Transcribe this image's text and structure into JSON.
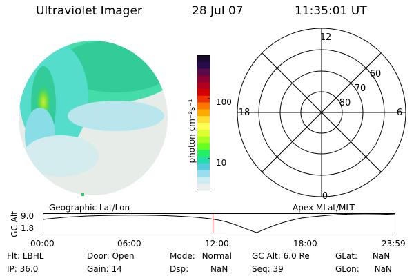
{
  "header": {
    "title": "Ultraviolet Imager",
    "date": "28 Jul 07",
    "time": "11:35:01 UT"
  },
  "colorbar": {
    "unit_label": "photon cm⁻²s⁻¹",
    "tick_labels": [
      "100",
      "10"
    ],
    "colors": [
      "#1a0a2e",
      "#2a0b4a",
      "#5a0a4a",
      "#8a0033",
      "#b00022",
      "#d40000",
      "#ee3300",
      "#ff7700",
      "#ffaa00",
      "#ffdd33",
      "#ffff55",
      "#dfff33",
      "#aaff22",
      "#66ff22",
      "#22ee66",
      "#22ddaa",
      "#55ccdd",
      "#99ddee",
      "#ccecf2",
      "#e8eeea"
    ]
  },
  "polar_plot": {
    "mlt_labels": [
      "12",
      "18",
      "6",
      "0"
    ],
    "mlat_labels": [
      "60",
      "70",
      "80"
    ]
  },
  "gc_panel": {
    "left_label": "Geographic Lat/Lon",
    "right_label": "Apex MLat/MLT",
    "axis_label": "GC Alt",
    "y_ticks": [
      "9.0",
      "1.8"
    ],
    "x_ticks": [
      "00:00",
      "06:00",
      "12:00",
      "18:00",
      "23:59"
    ],
    "current_time_marker_hours": 11.58
  },
  "info": {
    "flt_label": "Flt:",
    "flt_value": "LBHL",
    "ip_label": "IP:",
    "ip_value": "36.0",
    "door_label": "Door:",
    "door_value": "Open",
    "gain_label": "Gain:",
    "gain_value": "14",
    "mode_label": "Mode:",
    "mode_value": "Normal",
    "dsp_label": "Dsp:",
    "dsp_value": "NaN",
    "gcalt_label": "GC Alt:",
    "gcalt_value": "6.0 Re",
    "seq_label": "Seq:",
    "seq_value": "39",
    "glat_label": "GLat:",
    "glat_value": "NaN",
    "glon_label": "GLon:",
    "glon_value": "NaN"
  }
}
